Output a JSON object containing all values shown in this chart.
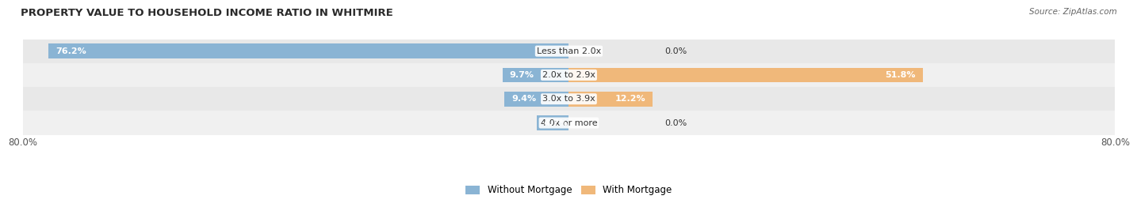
{
  "title": "PROPERTY VALUE TO HOUSEHOLD INCOME RATIO IN WHITMIRE",
  "source": "Source: ZipAtlas.com",
  "categories": [
    "Less than 2.0x",
    "2.0x to 2.9x",
    "3.0x to 3.9x",
    "4.0x or more"
  ],
  "without_mortgage": [
    76.2,
    9.7,
    9.4,
    4.7
  ],
  "with_mortgage": [
    0.0,
    51.8,
    12.2,
    0.0
  ],
  "axis_min": -80.0,
  "axis_max": 80.0,
  "axis_label_left": "80.0%",
  "axis_label_right": "80.0%",
  "color_without": "#8ab4d4",
  "color_with": "#f0b87a",
  "color_bg_row0": "#e8e8e8",
  "color_bg_row1": "#f0f0f0",
  "bar_height": 0.62,
  "title_fontsize": 9.5,
  "label_fontsize": 8.0,
  "tick_fontsize": 8.5,
  "source_fontsize": 7.5
}
